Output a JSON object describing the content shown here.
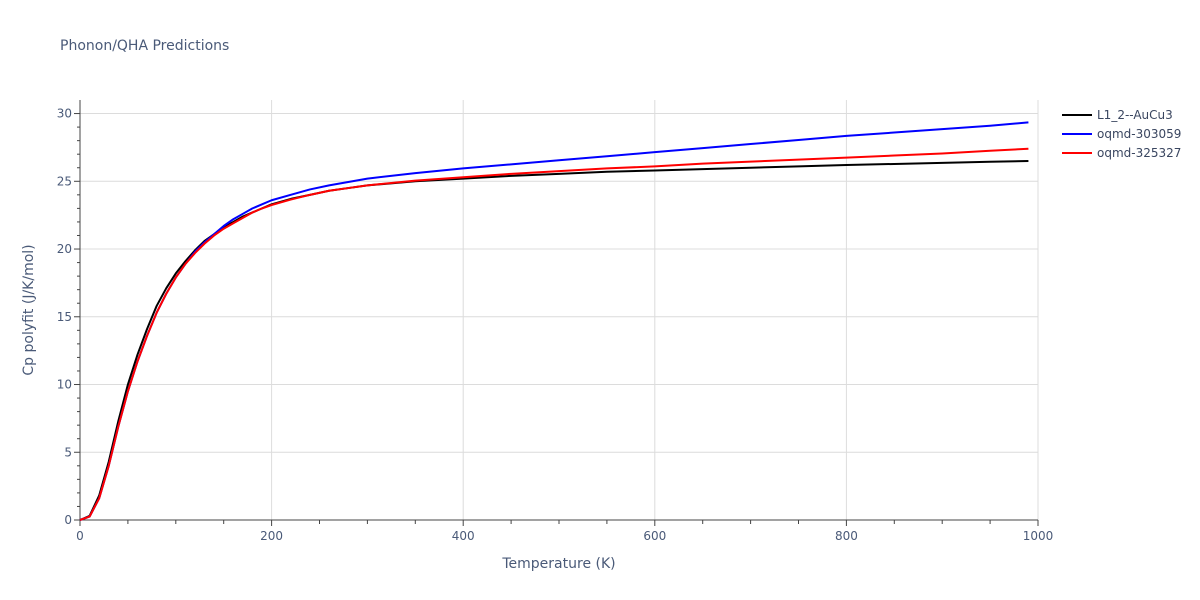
{
  "chart_data": {
    "type": "line",
    "title": "Phonon/QHA Predictions",
    "xlabel": "Temperature (K)",
    "ylabel": "Cp polyfit (J/K/mol)",
    "xlim": [
      0,
      1000
    ],
    "ylim": [
      0,
      31
    ],
    "x_ticks": [
      0,
      200,
      400,
      600,
      800,
      1000
    ],
    "y_ticks": [
      0,
      5,
      10,
      15,
      20,
      25,
      30
    ],
    "grid": true,
    "legend_position": "top-right",
    "series": [
      {
        "name": "L1_2--AuCu3",
        "color": "#000000",
        "x": [
          0,
          10,
          20,
          30,
          40,
          50,
          60,
          70,
          80,
          90,
          100,
          110,
          120,
          130,
          140,
          150,
          160,
          170,
          180,
          190,
          200,
          220,
          240,
          260,
          280,
          300,
          350,
          400,
          450,
          500,
          550,
          600,
          650,
          700,
          750,
          800,
          850,
          900,
          950,
          990
        ],
        "y": [
          0,
          0.3,
          1.8,
          4.3,
          7.3,
          10.0,
          12.2,
          14.1,
          15.8,
          17.1,
          18.2,
          19.1,
          19.9,
          20.6,
          21.1,
          21.6,
          22.0,
          22.4,
          22.7,
          23.0,
          23.3,
          23.7,
          24.0,
          24.3,
          24.5,
          24.7,
          25.0,
          25.2,
          25.4,
          25.55,
          25.7,
          25.8,
          25.9,
          26.0,
          26.1,
          26.2,
          26.28,
          26.36,
          26.44,
          26.5
        ]
      },
      {
        "name": "oqmd-303059",
        "color": "#0000ff",
        "x": [
          0,
          10,
          20,
          30,
          40,
          50,
          60,
          70,
          80,
          90,
          100,
          110,
          120,
          130,
          140,
          150,
          160,
          170,
          180,
          190,
          200,
          220,
          240,
          260,
          280,
          300,
          350,
          400,
          450,
          500,
          550,
          600,
          650,
          700,
          750,
          800,
          850,
          900,
          950,
          990
        ],
        "y": [
          0,
          0.25,
          1.6,
          4.0,
          6.9,
          9.5,
          11.7,
          13.6,
          15.3,
          16.7,
          17.9,
          18.9,
          19.8,
          20.5,
          21.1,
          21.7,
          22.2,
          22.6,
          23.0,
          23.3,
          23.6,
          24.0,
          24.4,
          24.7,
          24.95,
          25.2,
          25.6,
          25.95,
          26.25,
          26.55,
          26.85,
          27.15,
          27.45,
          27.75,
          28.05,
          28.35,
          28.6,
          28.85,
          29.1,
          29.35
        ]
      },
      {
        "name": "oqmd-325327",
        "color": "#ff0000",
        "x": [
          0,
          10,
          20,
          30,
          40,
          50,
          60,
          70,
          80,
          90,
          100,
          110,
          120,
          130,
          140,
          150,
          160,
          170,
          180,
          190,
          200,
          220,
          240,
          260,
          280,
          300,
          350,
          400,
          450,
          500,
          550,
          600,
          650,
          700,
          750,
          800,
          850,
          900,
          950,
          990
        ],
        "y": [
          0,
          0.25,
          1.6,
          4.0,
          6.9,
          9.5,
          11.7,
          13.6,
          15.3,
          16.7,
          17.9,
          18.9,
          19.7,
          20.4,
          21.0,
          21.5,
          21.9,
          22.3,
          22.7,
          23.0,
          23.25,
          23.65,
          24.0,
          24.3,
          24.5,
          24.7,
          25.05,
          25.3,
          25.55,
          25.75,
          25.95,
          26.1,
          26.3,
          26.45,
          26.6,
          26.75,
          26.9,
          27.05,
          27.25,
          27.4
        ]
      }
    ]
  }
}
